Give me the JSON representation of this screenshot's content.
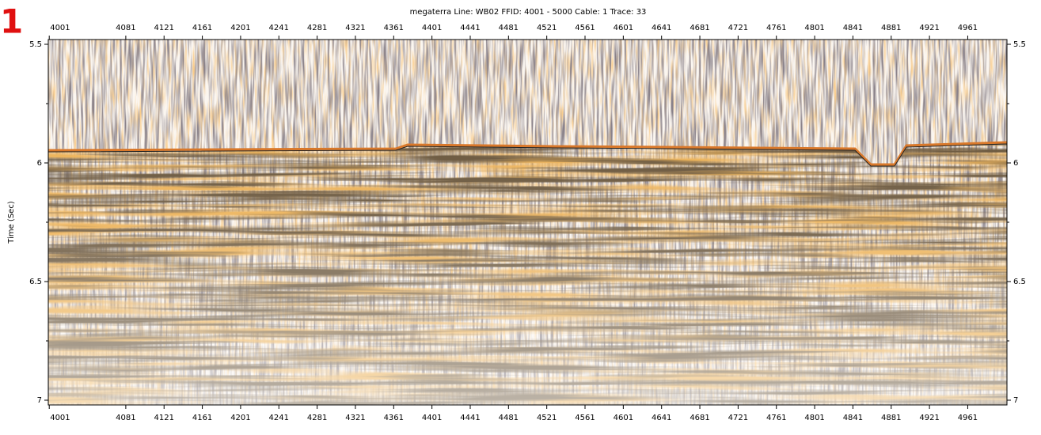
{
  "chart_data": {
    "type": "seismic",
    "panel_label": "1",
    "title": "megaterra  Line: WB02  FFID: 4001 - 5000  Cable: 1  Trace: 33",
    "y_label": "Time (Sec)",
    "xlim": [
      4000,
      5002
    ],
    "xticks": [
      4001,
      4081,
      4121,
      4161,
      4201,
      4241,
      4281,
      4321,
      4361,
      4401,
      4441,
      4481,
      4521,
      4561,
      4601,
      4641,
      4681,
      4721,
      4761,
      4801,
      4841,
      4881,
      4921,
      4961
    ],
    "ylim": [
      5.48,
      7.02
    ],
    "yticks": [
      5.5,
      6,
      6.5,
      7
    ],
    "yminorticks": [
      5.75,
      6.25,
      6.75
    ],
    "y_reversed": true
  }
}
